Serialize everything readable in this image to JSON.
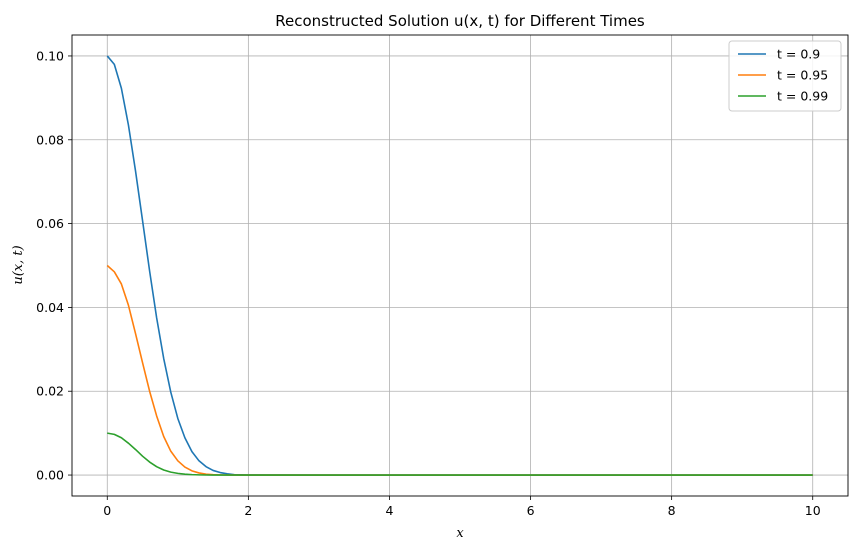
{
  "chart_data": {
    "type": "line",
    "title": "Reconstructed Solution u(x, t) for Different Times",
    "xlabel": "x",
    "ylabel": "u(x, t)",
    "xlim": [
      -0.5,
      10.5
    ],
    "ylim": [
      -0.005,
      0.105
    ],
    "x_ticks": [
      0,
      2,
      4,
      6,
      8,
      10
    ],
    "x_tick_labels": [
      "0",
      "2",
      "4",
      "6",
      "8",
      "10"
    ],
    "y_ticks": [
      0.0,
      0.02,
      0.04,
      0.06,
      0.08,
      0.1
    ],
    "y_tick_labels": [
      "0.00",
      "0.02",
      "0.04",
      "0.06",
      "0.08",
      "0.10"
    ],
    "grid": true,
    "legend_position": "top-right",
    "x": [
      0,
      0.1,
      0.2,
      0.3,
      0.4,
      0.5,
      0.6,
      0.7,
      0.8,
      0.9,
      1.0,
      1.1,
      1.2,
      1.3,
      1.4,
      1.5,
      1.6,
      1.7,
      1.8,
      1.9,
      2.0,
      3,
      4,
      5,
      6,
      7,
      8,
      9,
      10
    ],
    "series": [
      {
        "name": "t = 0.9",
        "color": "#1f77b4",
        "values": [
          0.1,
          0.098,
          0.0923,
          0.0835,
          0.0726,
          0.0607,
          0.0487,
          0.0375,
          0.0278,
          0.0198,
          0.0135,
          0.0089,
          0.0056,
          0.0034,
          0.002,
          0.0011,
          0.0006,
          0.0003,
          0.0001,
          5e-05,
          2e-05,
          0,
          0,
          0,
          0,
          0,
          0,
          0,
          0
        ]
      },
      {
        "name": "t = 0.95",
        "color": "#ff7f0e",
        "values": [
          0.05,
          0.0485,
          0.0456,
          0.0405,
          0.0338,
          0.0268,
          0.02,
          0.0141,
          0.0092,
          0.0057,
          0.0034,
          0.0019,
          0.001,
          0.0005,
          0.0002,
          0.0001,
          4e-05,
          1e-05,
          0,
          0,
          0,
          0,
          0,
          0,
          0,
          0,
          0,
          0,
          0
        ]
      },
      {
        "name": "t = 0.99",
        "color": "#2ca02c",
        "values": [
          0.01,
          0.0097,
          0.0089,
          0.0076,
          0.0061,
          0.0045,
          0.0031,
          0.002,
          0.0012,
          0.0007,
          0.0004,
          0.0002,
          0.0001,
          4e-05,
          1e-05,
          0,
          0,
          0,
          0,
          0,
          0,
          0,
          0,
          0,
          0,
          0,
          0,
          0,
          0
        ]
      }
    ]
  }
}
